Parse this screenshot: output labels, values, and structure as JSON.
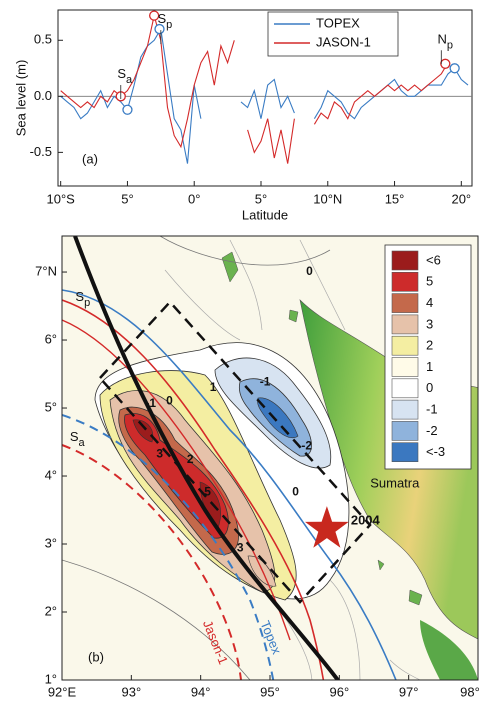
{
  "chart_data": [
    {
      "type": "line",
      "xlabel": "Latitude",
      "ylabel": "Sea level (m)",
      "panel_label": "(a)",
      "xlim": [
        -10.2,
        20.8
      ],
      "ylim": [
        -0.8,
        0.77
      ],
      "xticks": [
        {
          "value": -10,
          "label": "10°S"
        },
        {
          "value": -5,
          "label": "5°"
        },
        {
          "value": 0,
          "label": "0°"
        },
        {
          "value": 5,
          "label": "5°"
        },
        {
          "value": 10,
          "label": "10°N"
        },
        {
          "value": 15,
          "label": "15°"
        },
        {
          "value": 20,
          "label": "20°"
        }
      ],
      "yticks": [
        -0.5,
        {
          "value": 0,
          "label": "0.0"
        },
        0.5
      ],
      "legend": "top",
      "x": [
        -10,
        -9.5,
        -9,
        -8.5,
        -8,
        -7.5,
        -7,
        -6.5,
        -6,
        -5.5,
        -5,
        -4.5,
        -4,
        -3.5,
        -3,
        -2.5,
        -2,
        -1.5,
        -1,
        -0.5,
        0,
        0.5,
        1,
        1.5,
        2,
        2.5,
        3,
        3.5,
        4,
        4.5,
        5,
        5.5,
        6,
        6.5,
        7,
        7.5,
        8,
        8.5,
        9,
        9.5,
        10,
        10.5,
        11,
        11.5,
        12,
        12.5,
        13,
        13.5,
        14,
        14.5,
        15,
        15.5,
        16,
        16.5,
        17,
        17.5,
        18,
        18.5,
        19,
        19.5,
        20,
        20.5
      ],
      "series": [
        {
          "name": "TOPEX",
          "color": "#3a7cc4",
          "values": [
            0,
            -0.05,
            -0.1,
            -0.2,
            -0.15,
            -0.05,
            0.05,
            -0.1,
            0,
            -0.05,
            -0.12,
            0.1,
            0.35,
            0.45,
            0.5,
            0.6,
            0.2,
            -0.2,
            -0.3,
            -0.6,
            0.1,
            -0.2,
            null,
            null,
            null,
            null,
            null,
            -0.05,
            -0.1,
            0.05,
            -0.2,
            0.1,
            0.15,
            -0.1,
            0,
            -0.15,
            null,
            null,
            -0.2,
            -0.1,
            0.05,
            0,
            -0.05,
            -0.15,
            -0.2,
            -0.1,
            -0.05,
            0,
            0.05,
            0.1,
            0.15,
            0.05,
            0,
            0,
            0.05,
            0.1,
            0.1,
            0.1,
            0.2,
            0.25,
            0.15,
            0.1
          ],
          "circles": {
            "x": [
              -5,
              -2.6,
              19.5
            ],
            "y": [
              -0.12,
              0.6,
              0.25
            ]
          }
        },
        {
          "name": "JASON-1",
          "color": "#d42a2a",
          "values": [
            0.05,
            0,
            -0.05,
            -0.1,
            -0.05,
            -0.1,
            0,
            -0.05,
            0.05,
            0,
            0.05,
            0.15,
            0.3,
            0.45,
            0.72,
            0.5,
            -0.1,
            -0.35,
            -0.45,
            -0.2,
            0.1,
            0.3,
            0.4,
            0.1,
            0.45,
            0.3,
            0.5,
            null,
            -0.3,
            -0.5,
            -0.4,
            -0.2,
            -0.55,
            -0.3,
            -0.6,
            -0.2,
            null,
            null,
            -0.25,
            -0.15,
            -0.2,
            -0.05,
            -0.1,
            -0.2,
            -0.05,
            0,
            0.05,
            0,
            0.05,
            0.1,
            0.05,
            0.1,
            0.05,
            0.1,
            0.05,
            0.1,
            0.15,
            0.2,
            0.3,
            null,
            null,
            null
          ],
          "circles": {
            "x": [
              -5.5,
              -3,
              18.8
            ],
            "y": [
              0,
              0.72,
              0.29
            ]
          }
        }
      ],
      "annotations": [
        {
          "text": "S",
          "sub": "a",
          "x": -5.2,
          "y": 0.19
        },
        {
          "text": "S",
          "sub": "p",
          "x": -2.2,
          "y": 0.68
        },
        {
          "text": "N",
          "sub": "p",
          "x": 18.8,
          "y": 0.5
        }
      ]
    },
    {
      "type": "map",
      "panel_label": "(b)",
      "xlim": [
        92,
        98
      ],
      "ylim": [
        1,
        7.53
      ],
      "xticks": [
        {
          "value": 92,
          "label": "92°E"
        },
        {
          "value": 93,
          "label": "93°"
        },
        {
          "value": 94,
          "label": "94°"
        },
        {
          "value": 95,
          "label": "95°"
        },
        {
          "value": 96,
          "label": "96°"
        },
        {
          "value": 97,
          "label": "97°"
        },
        {
          "value": 98,
          "label": "98°"
        }
      ],
      "yticks": [
        {
          "value": 1,
          "label": "1°"
        },
        {
          "value": 2,
          "label": "2°"
        },
        {
          "value": 3,
          "label": "3°"
        },
        {
          "value": 4,
          "label": "4°"
        },
        {
          "value": 5,
          "label": "5°"
        },
        {
          "value": 6,
          "label": "6°"
        },
        {
          "value": 7,
          "label": "7°N"
        }
      ],
      "legend_levels": [
        {
          "label": "<6",
          "color": "#9b1c1c"
        },
        {
          "label": "5",
          "color": "#cd2b2b"
        },
        {
          "label": "4",
          "color": "#c4694b"
        },
        {
          "label": "3",
          "color": "#e6c2aa"
        },
        {
          "label": "2",
          "color": "#f4eea2"
        },
        {
          "label": "1",
          "color": "#fffbe8"
        },
        {
          "label": "0",
          "color": "#ffffff"
        },
        {
          "label": "-1",
          "color": "#d7e3f1"
        },
        {
          "label": "-2",
          "color": "#8fb3dc"
        },
        {
          "label": "<-3",
          "color": "#3b78c0"
        }
      ],
      "contour_labels": [
        {
          "text": "0",
          "lon": 95.57,
          "lat": 7.0
        },
        {
          "text": "-1",
          "lon": 93.28,
          "lat": 5.06
        },
        {
          "text": "0",
          "lon": 93.55,
          "lat": 5.1
        },
        {
          "text": "1",
          "lon": 94.18,
          "lat": 5.3
        },
        {
          "text": "-1",
          "lon": 94.93,
          "lat": 5.38
        },
        {
          "text": "-2",
          "lon": 95.53,
          "lat": 4.44
        },
        {
          "text": "3",
          "lon": 93.41,
          "lat": 4.32
        },
        {
          "text": "2",
          "lon": 93.85,
          "lat": 4.24
        },
        {
          "text": "5",
          "lon": 94.1,
          "lat": 3.76
        },
        {
          "text": "3",
          "lon": 94.57,
          "lat": 2.94
        },
        {
          "text": "0",
          "lon": 95.37,
          "lat": 3.76
        }
      ],
      "place_labels": [
        {
          "text": "Sumatra",
          "lon": 96.8,
          "lat": 3.88
        }
      ],
      "arc_labels": [
        {
          "text": "S",
          "sub": "p",
          "lon": 92.3,
          "lat": 6.62
        },
        {
          "text": "S",
          "sub": "a",
          "lon": 92.22,
          "lat": 4.56
        }
      ],
      "track_labels": [
        {
          "text": "Jason-1",
          "color": "#d42a2a",
          "lon": 94.2,
          "lat": 1.55
        },
        {
          "text": "Topex",
          "color": "#3a7cc4",
          "lon": 95.0,
          "lat": 1.62
        }
      ],
      "epicenter": {
        "label": "2004",
        "lon": 95.82,
        "lat": 3.22,
        "color": "#c8281e"
      }
    }
  ]
}
